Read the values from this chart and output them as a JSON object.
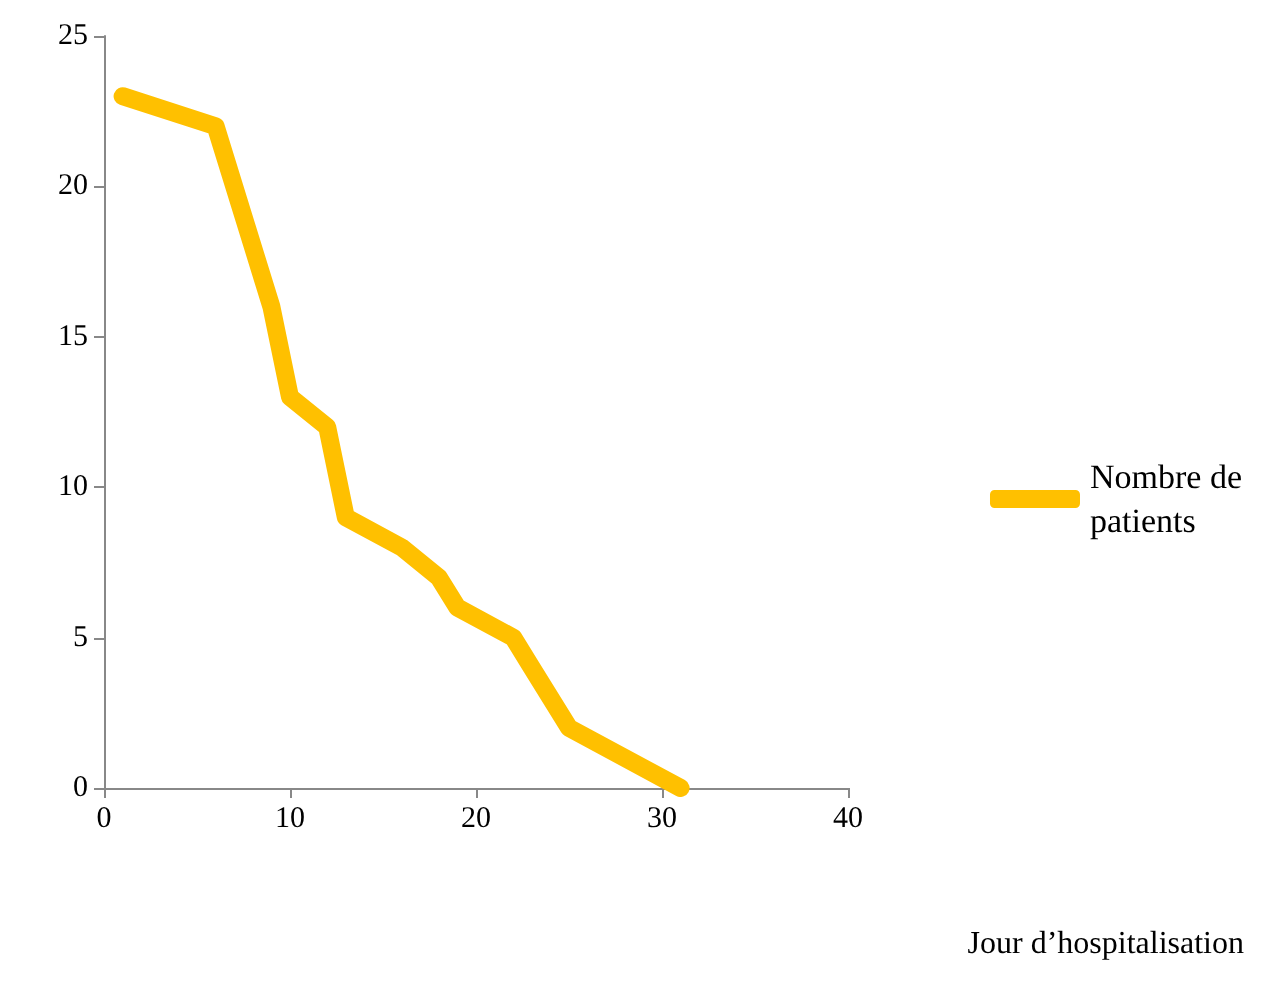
{
  "chart_data": {
    "type": "line",
    "xlabel": "Jour d’hospitalisation",
    "x": [
      1,
      6,
      9,
      10,
      12,
      13,
      16,
      18,
      19,
      22,
      23,
      25,
      31
    ],
    "series": [
      {
        "name": "Nombre de\npatients",
        "color": "#ffc000",
        "values": [
          23,
          22,
          16,
          13,
          12,
          9,
          8,
          7,
          6,
          5,
          4,
          2,
          0
        ]
      }
    ],
    "xlim": [
      0,
      40
    ],
    "xticks": [
      0,
      10,
      20,
      30,
      40
    ],
    "ylim": [
      0,
      25
    ],
    "yticks": [
      0,
      5,
      10,
      15,
      20,
      25
    ],
    "grid": false,
    "legend": "right",
    "line_style": "solid"
  }
}
